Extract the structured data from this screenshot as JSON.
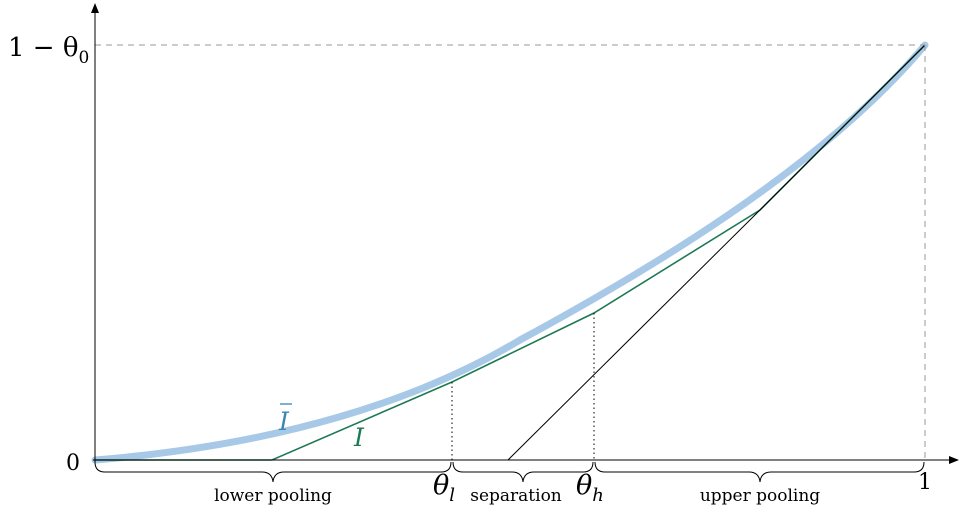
{
  "axes": {
    "y_top_label": "1 − θ",
    "y_top_subscript": "0",
    "y_zero_label": "0",
    "x_one_label": "1"
  },
  "markers": {
    "theta_l": "θ",
    "theta_l_sub": "l",
    "theta_h": "θ",
    "theta_h_sub": "h"
  },
  "legend": {
    "ibar_label": "I",
    "i_label": "I"
  },
  "regions": {
    "lower": "lower pooling",
    "middle": "separation",
    "upper": "upper pooling"
  },
  "colors": {
    "ibar": "#a7c8e6",
    "ibar_text": "#3a86b5",
    "i": "#1e7a55",
    "axis": "#000000",
    "guide": "#999999"
  }
}
